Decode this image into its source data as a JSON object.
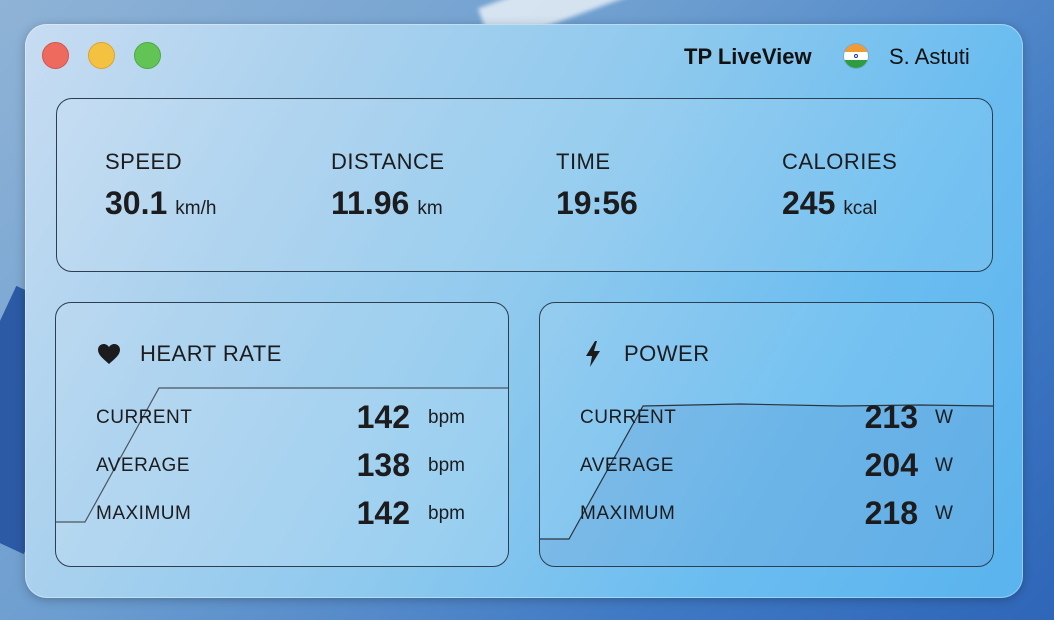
{
  "window": {
    "app_title": "TP LiveView",
    "user_name": "S. Astuti",
    "flag_icon": "india-flag-icon"
  },
  "summary": {
    "speed": {
      "label": "SPEED",
      "value": "30.1",
      "unit": "km/h"
    },
    "distance": {
      "label": "DISTANCE",
      "value": "11.96",
      "unit": "km"
    },
    "time": {
      "label": "TIME",
      "value": "19:56",
      "unit": ""
    },
    "calories": {
      "label": "CALORIES",
      "value": "245",
      "unit": "kcal"
    }
  },
  "heart_rate": {
    "title": "HEART RATE",
    "icon": "heart-icon",
    "rows": [
      {
        "label": "CURRENT",
        "value": "142",
        "unit": "bpm"
      },
      {
        "label": "AVERAGE",
        "value": "138",
        "unit": "bpm"
      },
      {
        "label": "MAXIMUM",
        "value": "142",
        "unit": "bpm"
      }
    ]
  },
  "power": {
    "title": "POWER",
    "icon": "lightning-bolt-icon",
    "rows": [
      {
        "label": "CURRENT",
        "value": "213",
        "unit": "W"
      },
      {
        "label": "AVERAGE",
        "value": "204",
        "unit": "W"
      },
      {
        "label": "MAXIMUM",
        "value": "218",
        "unit": "W"
      }
    ]
  },
  "colors": {
    "window_tint": "#8ec9ee",
    "text": "#1c1c1e",
    "close": "#ee6a5f",
    "minimize": "#f5c141",
    "maximize": "#61c454"
  }
}
